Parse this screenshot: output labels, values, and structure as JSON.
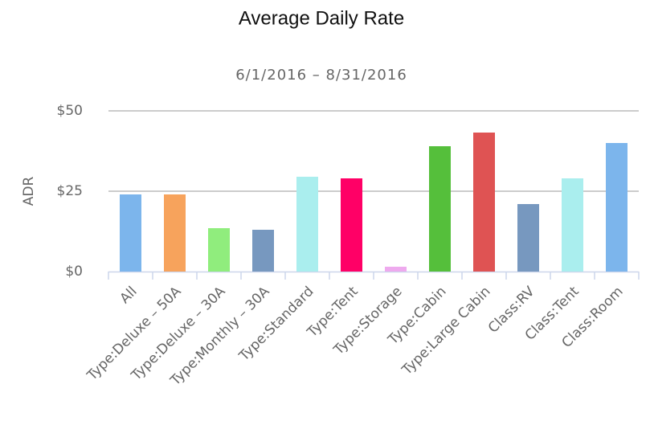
{
  "chart_data": {
    "type": "bar",
    "title": "Average Daily Rate",
    "subtitle": "6/1/2016 – 8/31/2016",
    "y_label": "ADR",
    "categories": [
      "All",
      "Type:Deluxe – 50A",
      "Type:Deluxe – 30A",
      "Type:Monthly – 30A",
      "Type:Standard",
      "Type:Tent",
      "Type:Storage",
      "Type:Cabin",
      "Type:Large Cabin",
      "Class:RV",
      "Class:Tent",
      "Class:Room"
    ],
    "values": [
      24,
      24,
      13.5,
      13,
      29.5,
      29,
      1.5,
      39,
      43.25,
      21,
      29,
      40
    ],
    "colors": [
      "#7cb5ec",
      "#f7a35c",
      "#90ed7d",
      "#7798bf",
      "#aaeeee",
      "#ff0066",
      "#eeaaee",
      "#55bf3b",
      "#df5353",
      "#7798bf",
      "#aaeeee",
      "#7cb5ec"
    ],
    "ylim": [
      0,
      50
    ],
    "yticks": [
      {
        "value": 0,
        "label": "$0"
      },
      {
        "value": 25,
        "label": "$25"
      },
      {
        "value": 50,
        "label": "$50"
      }
    ],
    "grid": true
  }
}
